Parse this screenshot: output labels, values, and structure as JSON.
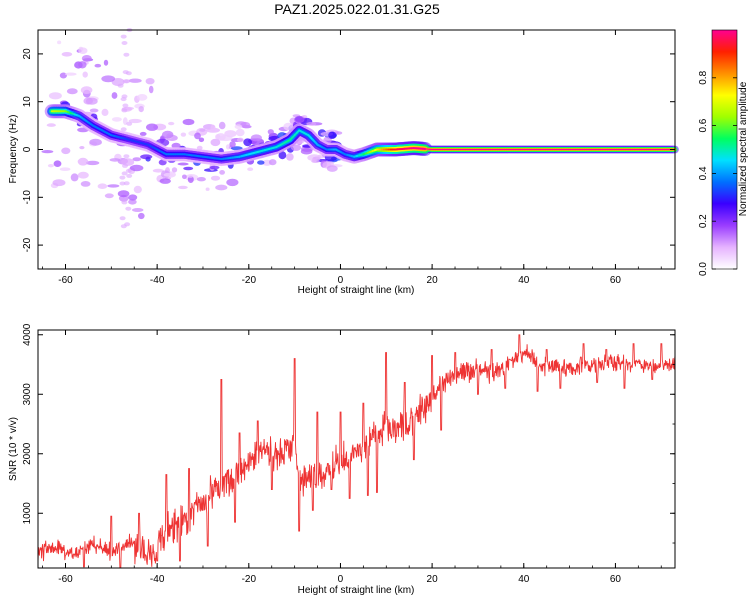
{
  "figure_title": "PAZ1.2025.022.01.31.G25",
  "chart_data": [
    {
      "type": "heatmap",
      "title": "",
      "xlabel": "Height of straight line (km)",
      "ylabel": "Frequency (Hz)",
      "xlim": [
        -66,
        73
      ],
      "ylim": [
        -25,
        25
      ],
      "x_ticks": [
        "-60",
        "-40",
        "-20",
        "0",
        "20",
        "40",
        "60"
      ],
      "y_ticks": [
        "-20",
        "-10",
        "0",
        "10",
        "20"
      ],
      "colorbar": {
        "label": "Normalized spectral amplitude",
        "range": [
          0,
          1
        ],
        "ticks": [
          "0.0",
          "0.2",
          "0.4",
          "0.6",
          "0.8"
        ],
        "colors": [
          "#ffffff",
          "#e6b3ff",
          "#9a3dff",
          "#3a00ff",
          "#0070ff",
          "#00e0ff",
          "#00ff60",
          "#a0ff00",
          "#ffff00",
          "#ff9000",
          "#ff2000",
          "#ff0090"
        ]
      },
      "ridge": {
        "x": [
          -63,
          -60,
          -57,
          -54,
          -50,
          -46,
          -42,
          -38,
          -34,
          -30,
          -26,
          -22,
          -18,
          -14,
          -11,
          -9,
          -7,
          -5,
          -3,
          -1,
          1,
          3,
          5,
          8,
          12,
          16,
          20,
          73
        ],
        "frequency": [
          8,
          8,
          7,
          5,
          3,
          2,
          1,
          -1,
          -1,
          -1.5,
          -2,
          -1.5,
          -0.5,
          0.5,
          2,
          4,
          3,
          1,
          0,
          0,
          -1,
          -1.5,
          -1,
          0,
          0,
          0.3,
          0,
          0
        ],
        "amplitude": [
          0.65,
          0.6,
          0.4,
          0.35,
          0.35,
          0.3,
          0.3,
          0.35,
          0.35,
          0.35,
          0.35,
          0.4,
          0.45,
          0.45,
          0.5,
          0.45,
          0.45,
          0.4,
          0.35,
          0.4,
          0.35,
          0.4,
          0.5,
          0.7,
          0.9,
          0.95,
          1.0,
          1.0
        ]
      }
    },
    {
      "type": "line",
      "title": "",
      "xlabel": "Height of straight line (km)",
      "ylabel": "SNR (10 * v/v)",
      "xlim": [
        -66,
        73
      ],
      "ylim": [
        80,
        4080
      ],
      "x_ticks": [
        "-60",
        "-40",
        "-20",
        "0",
        "20",
        "40",
        "60"
      ],
      "y_ticks": [
        "1000",
        "2000",
        "3000",
        "4000"
      ],
      "color": "#ee3333",
      "series": [
        {
          "x": [
            -66,
            -62,
            -58,
            -54,
            -50,
            -46,
            -42,
            -38,
            -34,
            -30,
            -27,
            -25,
            -22,
            -18,
            -14,
            -11,
            -10,
            -9,
            -6,
            -3,
            0,
            3,
            6,
            9,
            10,
            12,
            15,
            18,
            20,
            23,
            27,
            30,
            34,
            37,
            39,
            41,
            43,
            46,
            50,
            55,
            60,
            65,
            69,
            73
          ],
          "values": [
            350,
            420,
            300,
            480,
            330,
            540,
            250,
            700,
            900,
            1200,
            1500,
            1550,
            1700,
            2050,
            2000,
            2100,
            2300,
            1500,
            1600,
            1700,
            1900,
            2000,
            2250,
            2300,
            2500,
            2400,
            2500,
            2750,
            2950,
            3250,
            3350,
            3400,
            3350,
            3550,
            3650,
            3700,
            3500,
            3450,
            3450,
            3500,
            3550,
            3500,
            3450,
            3500
          ],
          "peaks_x": [
            -50,
            -44,
            -38,
            -33,
            -26,
            -22,
            -18,
            -10,
            -5,
            0,
            5,
            10,
            14,
            20,
            25,
            33,
            39,
            45,
            53,
            58,
            64,
            70
          ],
          "peaks_values": [
            950,
            1000,
            1650,
            1750,
            3250,
            2350,
            2550,
            3600,
            2700,
            2700,
            2850,
            3700,
            3200,
            3650,
            3700,
            3750,
            4000,
            3750,
            3850,
            3750,
            3850,
            3850
          ],
          "dips_x": [
            -56,
            -48,
            -40,
            -35,
            -29,
            -23,
            -15,
            -9,
            -6,
            -2,
            2,
            6,
            8,
            16,
            22,
            30,
            36,
            43,
            48,
            56,
            62,
            68
          ],
          "dips_values": [
            100,
            80,
            200,
            200,
            450,
            850,
            1400,
            700,
            1050,
            1400,
            1250,
            1300,
            1350,
            1900,
            2400,
            3000,
            3100,
            3050,
            3100,
            3200,
            3100,
            3250
          ]
        }
      ]
    }
  ]
}
